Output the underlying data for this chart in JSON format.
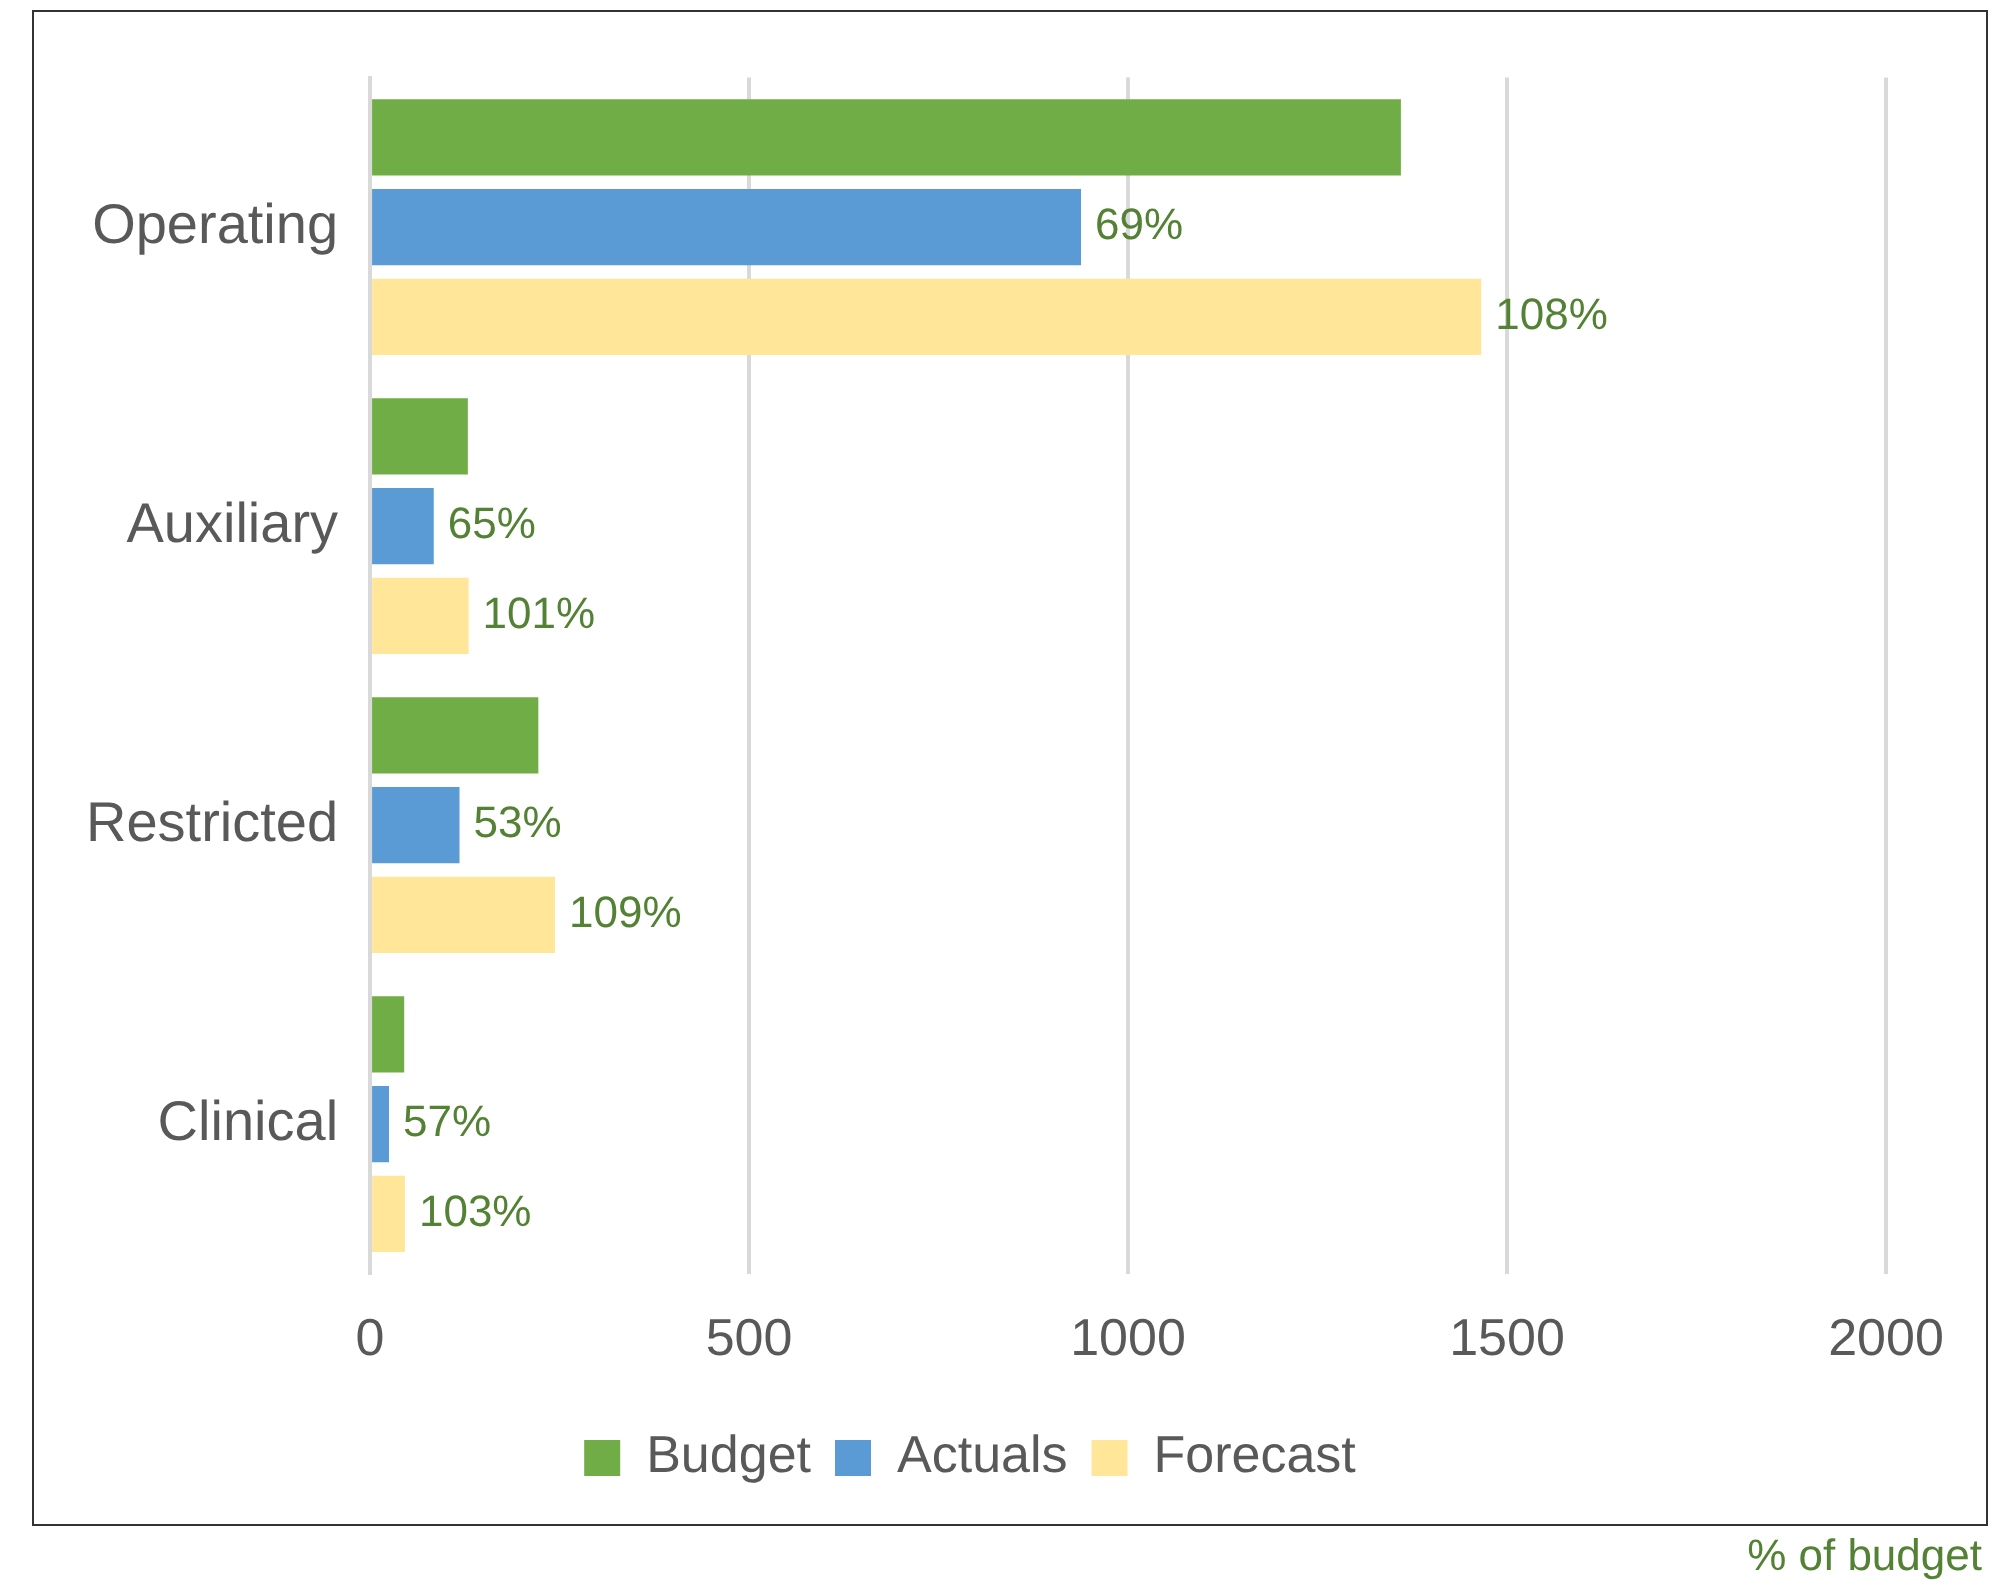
{
  "chart_data": {
    "type": "bar",
    "orientation": "horizontal",
    "categories": [
      "Operating",
      "Auxiliary",
      "Restricted",
      "Clinical"
    ],
    "series": [
      {
        "name": "Budget",
        "color": "#70ad47",
        "values": [
          1360,
          129,
          222,
          45
        ]
      },
      {
        "name": "Actuals",
        "color": "#5b9bd5",
        "values": [
          938,
          84,
          118,
          25
        ]
      },
      {
        "name": "Forecast",
        "color": "#ffe699",
        "values": [
          1466,
          130,
          244,
          46
        ]
      }
    ],
    "xlim": [
      0,
      2000
    ],
    "xticks": [
      0,
      500,
      1000,
      1500,
      2000
    ],
    "grid": "x",
    "legend": "bottom",
    "annotations": [
      {
        "text": "69%",
        "x": 938,
        "y": "Operating"
      },
      "108%",
      {
        "text": "65%",
        "x": 84,
        "y": "Auxiliary"
      },
      "101%",
      {
        "text": "53%",
        "x": 118,
        "y": "Restricted"
      },
      "109%",
      {
        "text": "57%",
        "x": 25,
        "y": "Clinical"
      },
      "103%",
      "% of budget"
    ]
  }
}
